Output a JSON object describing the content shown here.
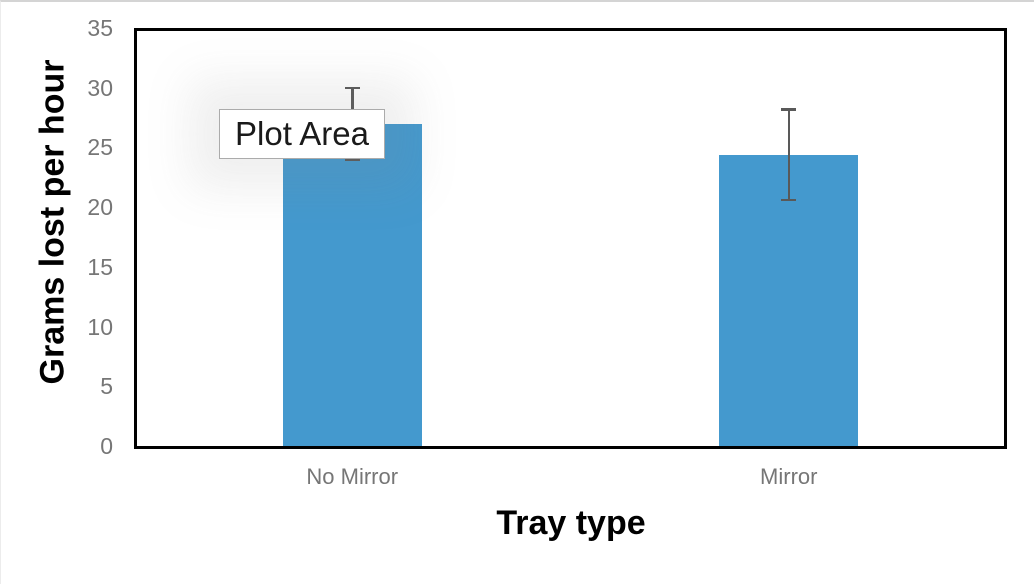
{
  "chart_data": {
    "type": "bar",
    "title": "",
    "xlabel": "Tray type",
    "ylabel": "Grams lost per hour",
    "categories": [
      "No Mirror",
      "Mirror"
    ],
    "values": [
      27,
      24.4
    ],
    "error_bars": [
      3.1,
      3.9
    ],
    "ylim": [
      0,
      35
    ],
    "yticks": [
      35,
      30,
      25,
      20,
      15,
      10,
      5,
      0
    ],
    "grid": false,
    "legend": false,
    "bar_color": "#4499CE",
    "error_bar_color": "#595959",
    "tick_label_color": "#767676",
    "axis_title_color": "#000000",
    "frame_color": "#000000"
  },
  "tooltip": {
    "label": "Plot Area"
  }
}
